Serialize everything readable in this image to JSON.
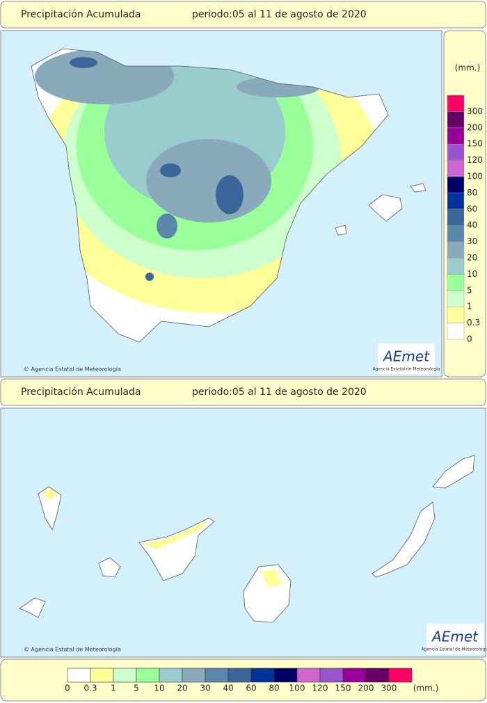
{
  "panels": [
    {
      "title": "Precipitación Acumulada",
      "period": "periodo:05 al 11 de agosto de 2020",
      "credit": "© Agencia Estatal de Meteorología"
    },
    {
      "title": "Precipitación Acumulada",
      "period": "periodo:05 al 11 de agosto de 2020",
      "credit": "© Agencia Estatal de Meteorología"
    }
  ],
  "logo": {
    "text": "AEmet",
    "subtitle": "Agencia Estatal de Meteorología"
  },
  "legend": {
    "unit": "(mm.)",
    "levels": [
      {
        "value": 0,
        "color": "#ffffff"
      },
      {
        "value": 0.3,
        "color": "#ffff99"
      },
      {
        "value": 1,
        "color": "#ccffcc"
      },
      {
        "value": 5,
        "color": "#99ff99"
      },
      {
        "value": 10,
        "color": "#99cccc"
      },
      {
        "value": 20,
        "color": "#88aabb"
      },
      {
        "value": 30,
        "color": "#5b88aa"
      },
      {
        "value": 40,
        "color": "#3a6699"
      },
      {
        "value": 60,
        "color": "#003399"
      },
      {
        "value": 80,
        "color": "#000066"
      },
      {
        "value": 100,
        "color": "#cc66cc"
      },
      {
        "value": 120,
        "color": "#9955cc"
      },
      {
        "value": 150,
        "color": "#990099"
      },
      {
        "value": 200,
        "color": "#660066"
      },
      {
        "value": 300,
        "color": "#ff0066"
      }
    ]
  }
}
